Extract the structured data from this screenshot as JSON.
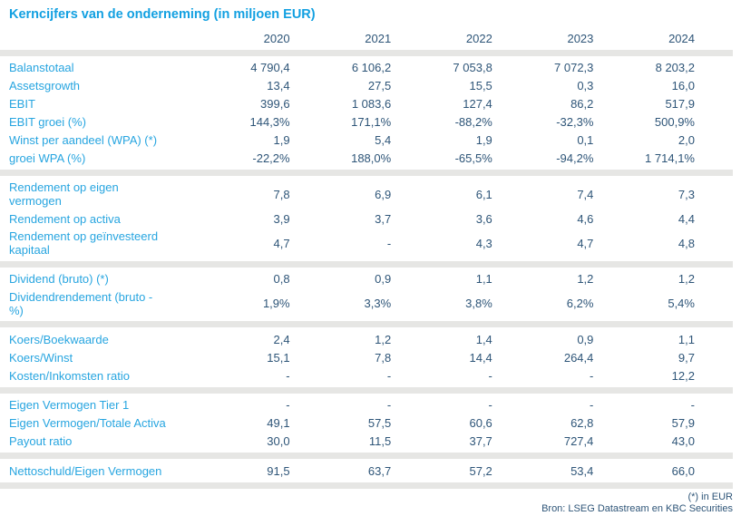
{
  "title": "Kerncijfers van de onderneming (in miljoen EUR)",
  "columns": [
    "2020",
    "2021",
    "2022",
    "2023",
    "2024"
  ],
  "groups": [
    {
      "rows": [
        {
          "label": "Balanstotaal",
          "values": [
            "4 790,4",
            "6 106,2",
            "7 053,8",
            "7 072,3",
            "8 203,2"
          ]
        },
        {
          "label": "Assetsgrowth",
          "values": [
            "13,4",
            "27,5",
            "15,5",
            "0,3",
            "16,0"
          ]
        },
        {
          "label": "EBIT",
          "values": [
            "399,6",
            "1 083,6",
            "127,4",
            "86,2",
            "517,9"
          ]
        },
        {
          "label": "EBIT groei (%)",
          "values": [
            "144,3%",
            "171,1%",
            "-88,2%",
            "-32,3%",
            "500,9%"
          ]
        },
        {
          "label": "Winst per aandeel (WPA) (*)",
          "values": [
            "1,9",
            "5,4",
            "1,9",
            "0,1",
            "2,0"
          ]
        },
        {
          "label": "groei WPA (%)",
          "values": [
            "-22,2%",
            "188,0%",
            "-65,5%",
            "-94,2%",
            "1 714,1%"
          ]
        }
      ]
    },
    {
      "rows": [
        {
          "label": "Rendement op eigen\nvermogen",
          "values": [
            "7,8",
            "6,9",
            "6,1",
            "7,4",
            "7,3"
          ]
        },
        {
          "label": "Rendement op activa",
          "values": [
            "3,9",
            "3,7",
            "3,6",
            "4,6",
            "4,4"
          ]
        },
        {
          "label": "Rendement op geïnvesteerd\nkapitaal",
          "values": [
            "4,7",
            "-",
            "4,3",
            "4,7",
            "4,8"
          ]
        }
      ]
    },
    {
      "rows": [
        {
          "label": "Dividend (bruto) (*)",
          "values": [
            "0,8",
            "0,9",
            "1,1",
            "1,2",
            "1,2"
          ]
        },
        {
          "label": "Dividendrendement (bruto -\n%)",
          "values": [
            "1,9%",
            "3,3%",
            "3,8%",
            "6,2%",
            "5,4%"
          ]
        }
      ]
    },
    {
      "rows": [
        {
          "label": "Koers/Boekwaarde",
          "values": [
            "2,4",
            "1,2",
            "1,4",
            "0,9",
            "1,1"
          ]
        },
        {
          "label": "Koers/Winst",
          "values": [
            "15,1",
            "7,8",
            "14,4",
            "264,4",
            "9,7"
          ]
        },
        {
          "label": "Kosten/Inkomsten ratio",
          "values": [
            "-",
            "-",
            "-",
            "-",
            "12,2"
          ]
        }
      ]
    },
    {
      "rows": [
        {
          "label": "Eigen Vermogen Tier 1",
          "values": [
            "-",
            "-",
            "-",
            "-",
            "-"
          ]
        },
        {
          "label": "Eigen Vermogen/Totale Activa",
          "values": [
            "49,1",
            "57,5",
            "60,6",
            "62,8",
            "57,9"
          ]
        },
        {
          "label": "Payout ratio",
          "values": [
            "30,0",
            "11,5",
            "37,7",
            "727,4",
            "43,0"
          ]
        }
      ]
    },
    {
      "rows": [
        {
          "label": "Nettoschuld/Eigen Vermogen",
          "values": [
            "91,5",
            "63,7",
            "57,2",
            "53,4",
            "66,0"
          ]
        }
      ]
    }
  ],
  "footnotes": {
    "unit": "(*) in EUR",
    "source": "Bron: LSEG Datastream en KBC Securities"
  },
  "colors": {
    "accent_blue": "#12A0E1",
    "label_blue": "#27A5E0",
    "value_navy": "#2E5578",
    "divider_gray": "#E6E6E4"
  },
  "chart_data": {
    "type": "table",
    "title": "Kerncijfers van de onderneming (in miljoen EUR)",
    "columns": [
      "2020",
      "2021",
      "2022",
      "2023",
      "2024"
    ],
    "rows": [
      {
        "label": "Balanstotaal",
        "values": [
          4790.4,
          6106.2,
          7053.8,
          7072.3,
          8203.2
        ]
      },
      {
        "label": "Assetsgrowth",
        "values": [
          13.4,
          27.5,
          15.5,
          0.3,
          16.0
        ]
      },
      {
        "label": "EBIT",
        "values": [
          399.6,
          1083.6,
          127.4,
          86.2,
          517.9
        ]
      },
      {
        "label": "EBIT groei (%)",
        "values": [
          144.3,
          171.1,
          -88.2,
          -32.3,
          500.9
        ]
      },
      {
        "label": "Winst per aandeel (WPA) (*)",
        "values": [
          1.9,
          5.4,
          1.9,
          0.1,
          2.0
        ]
      },
      {
        "label": "groei WPA (%)",
        "values": [
          -22.2,
          188.0,
          -65.5,
          -94.2,
          1714.1
        ]
      },
      {
        "label": "Rendement op eigen vermogen",
        "values": [
          7.8,
          6.9,
          6.1,
          7.4,
          7.3
        ]
      },
      {
        "label": "Rendement op activa",
        "values": [
          3.9,
          3.7,
          3.6,
          4.6,
          4.4
        ]
      },
      {
        "label": "Rendement op geïnvesteerd kapitaal",
        "values": [
          4.7,
          null,
          4.3,
          4.7,
          4.8
        ]
      },
      {
        "label": "Dividend (bruto) (*)",
        "values": [
          0.8,
          0.9,
          1.1,
          1.2,
          1.2
        ]
      },
      {
        "label": "Dividendrendement (bruto - %)",
        "values": [
          1.9,
          3.3,
          3.8,
          6.2,
          5.4
        ]
      },
      {
        "label": "Koers/Boekwaarde",
        "values": [
          2.4,
          1.2,
          1.4,
          0.9,
          1.1
        ]
      },
      {
        "label": "Koers/Winst",
        "values": [
          15.1,
          7.8,
          14.4,
          264.4,
          9.7
        ]
      },
      {
        "label": "Kosten/Inkomsten ratio",
        "values": [
          null,
          null,
          null,
          null,
          12.2
        ]
      },
      {
        "label": "Eigen Vermogen Tier 1",
        "values": [
          null,
          null,
          null,
          null,
          null
        ]
      },
      {
        "label": "Eigen Vermogen/Totale Activa",
        "values": [
          49.1,
          57.5,
          60.6,
          62.8,
          57.9
        ]
      },
      {
        "label": "Payout ratio",
        "values": [
          30.0,
          11.5,
          37.7,
          727.4,
          43.0
        ]
      },
      {
        "label": "Nettoschuld/Eigen Vermogen",
        "values": [
          91.5,
          63.7,
          57.2,
          53.4,
          66.0
        ]
      }
    ]
  }
}
